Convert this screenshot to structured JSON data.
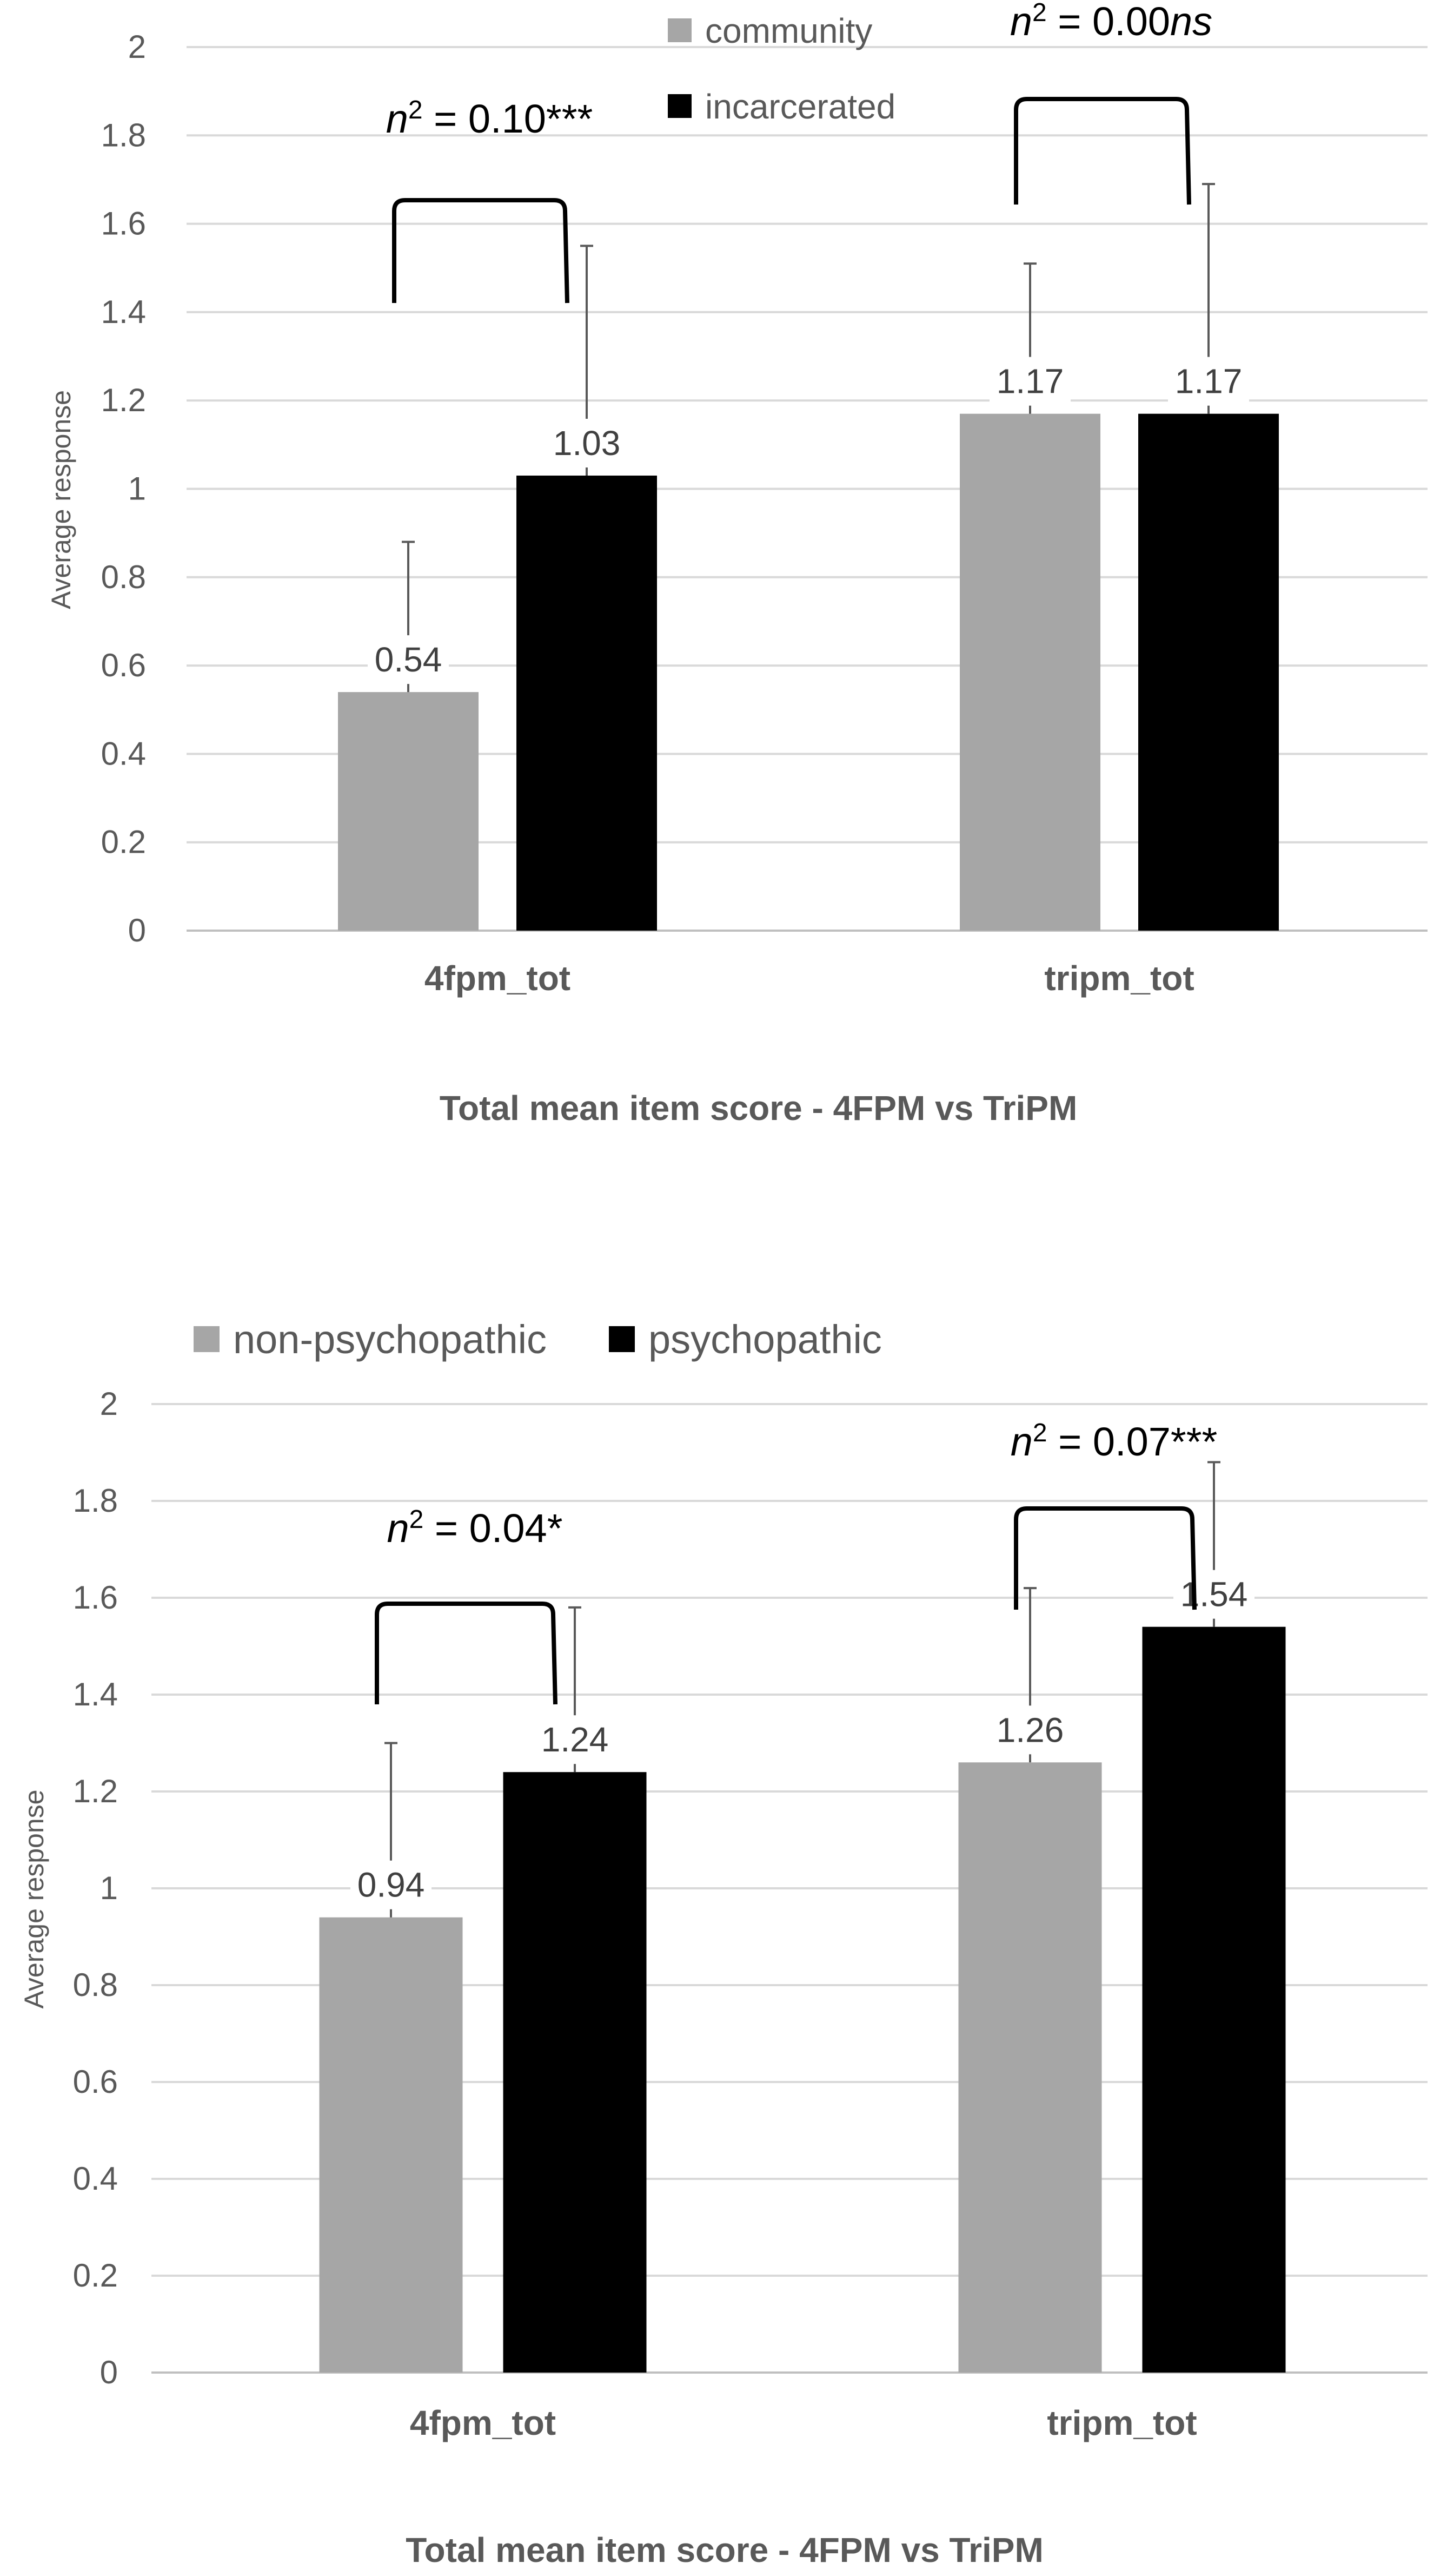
{
  "chart_data": [
    {
      "type": "bar",
      "categories": [
        "4fpm_tot",
        "tripm_tot"
      ],
      "series": [
        {
          "name": "community",
          "values": [
            0.54,
            1.17
          ],
          "errors": [
            0.34,
            0.34
          ],
          "labels": [
            "0.54",
            "1.17"
          ]
        },
        {
          "name": "incarcerated",
          "values": [
            1.03,
            1.17
          ],
          "errors": [
            0.52,
            0.52
          ],
          "labels": [
            "1.03",
            "1.17"
          ]
        }
      ],
      "colors": [
        "#a6a6a6",
        "#000000"
      ],
      "title": "",
      "xlabel": "Total mean item score - 4FPM vs TriPM",
      "ylabel": "Average response",
      "ylim": [
        0,
        2
      ],
      "yticks": [
        0,
        0.2,
        0.4,
        0.6,
        0.8,
        1,
        1.2,
        1.4,
        1.6,
        1.8,
        2
      ],
      "ytick_labels": [
        "0",
        "0.2",
        "0.4",
        "0.6",
        "0.8",
        "1",
        "1.2",
        "1.4",
        "1.6",
        "1.8",
        "2"
      ],
      "grid": true,
      "legend_position": "top-center",
      "annotations": [
        {
          "category": "4fpm_tot",
          "symbol": "n",
          "exponent": "2",
          "text": " = 0.10***",
          "italic_suffix": ""
        },
        {
          "category": "tripm_tot",
          "symbol": "n",
          "exponent": "2",
          "text": " = 0.00",
          "italic_suffix": "ns"
        }
      ]
    },
    {
      "type": "bar",
      "categories": [
        "4fpm_tot",
        "tripm_tot"
      ],
      "series": [
        {
          "name": "non-psychopathic",
          "values": [
            0.94,
            1.26
          ],
          "errors": [
            0.36,
            0.36
          ],
          "labels": [
            "0.94",
            "1.26"
          ]
        },
        {
          "name": "psychopathic",
          "values": [
            1.24,
            1.54
          ],
          "errors": [
            0.34,
            0.34
          ],
          "labels": [
            "1.24",
            "1.54"
          ]
        }
      ],
      "colors": [
        "#a6a6a6",
        "#000000"
      ],
      "title": "",
      "xlabel": "Total mean item score - 4FPM vs TriPM",
      "ylabel": "Average response",
      "ylim": [
        0,
        2
      ],
      "yticks": [
        0,
        0.2,
        0.4,
        0.6,
        0.8,
        1,
        1.2,
        1.4,
        1.6,
        1.8,
        2
      ],
      "ytick_labels": [
        "0",
        "0.2",
        "0.4",
        "0.6",
        "0.8",
        "1",
        "1.2",
        "1.4",
        "1.6",
        "1.8",
        "2"
      ],
      "grid": true,
      "legend_position": "top-left",
      "annotations": [
        {
          "category": "4fpm_tot",
          "symbol": "n",
          "exponent": "2",
          "text": " = 0.04*",
          "italic_suffix": ""
        },
        {
          "category": "tripm_tot",
          "symbol": "n",
          "exponent": "2",
          "text": " = 0.07***",
          "italic_suffix": ""
        }
      ]
    }
  ]
}
